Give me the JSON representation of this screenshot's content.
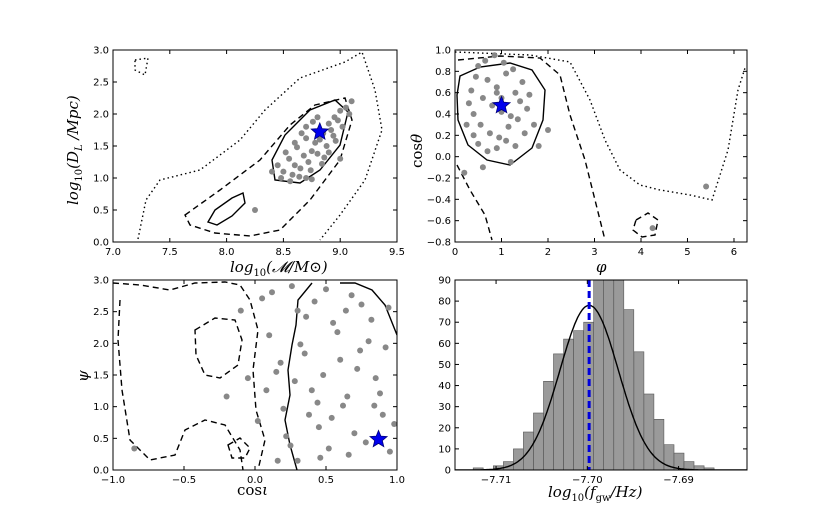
{
  "chart_data": [
    {
      "type": "scatter",
      "panel": "top-left",
      "xlabel": "log10(𝓜/M⊙)",
      "ylabel": "log10(DL /Mpc)",
      "xlim": [
        7.0,
        9.5
      ],
      "ylim": [
        0.0,
        3.0
      ],
      "xticks": [
        "7.0",
        "7.5",
        "8.0",
        "8.5",
        "9.0",
        "9.5"
      ],
      "yticks": [
        "0.0",
        "0.5",
        "1.0",
        "1.5",
        "2.0",
        "2.5",
        "3.0"
      ],
      "points": [
        [
          8.62,
          1.48
        ],
        [
          8.7,
          1.62
        ],
        [
          8.78,
          1.55
        ],
        [
          8.85,
          1.7
        ],
        [
          8.9,
          1.85
        ],
        [
          8.95,
          1.95
        ],
        [
          9.0,
          2.05
        ],
        [
          8.55,
          1.3
        ],
        [
          8.6,
          1.2
        ],
        [
          8.68,
          1.35
        ],
        [
          8.75,
          1.42
        ],
        [
          8.82,
          1.6
        ],
        [
          8.88,
          1.5
        ],
        [
          8.92,
          1.75
        ],
        [
          8.98,
          1.9
        ],
        [
          9.05,
          2.1
        ],
        [
          8.5,
          1.1
        ],
        [
          8.58,
          1.05
        ],
        [
          8.65,
          1.15
        ],
        [
          8.72,
          1.25
        ],
        [
          8.8,
          1.38
        ],
        [
          8.86,
          1.32
        ],
        [
          8.94,
          1.66
        ],
        [
          9.02,
          1.8
        ],
        [
          8.48,
          1.0
        ],
        [
          8.56,
          0.95
        ],
        [
          8.64,
          1.02
        ],
        [
          8.74,
          1.12
        ],
        [
          8.84,
          1.22
        ],
        [
          8.9,
          1.4
        ],
        [
          8.96,
          1.58
        ],
        [
          9.08,
          2.0
        ],
        [
          8.7,
          1.8
        ],
        [
          8.76,
          1.88
        ],
        [
          8.66,
          1.7
        ],
        [
          8.52,
          1.4
        ],
        [
          8.45,
          1.2
        ],
        [
          8.6,
          1.55
        ],
        [
          8.8,
          1.95
        ],
        [
          9.1,
          2.2
        ],
        [
          8.25,
          0.5
        ],
        [
          8.7,
          1.0
        ],
        [
          8.75,
          0.98
        ],
        [
          9.0,
          1.3
        ],
        [
          8.4,
          1.1
        ]
      ],
      "star": [
        8.82,
        1.72
      ],
      "contours": [
        "solid",
        "dashed",
        "dotted"
      ]
    },
    {
      "type": "scatter",
      "panel": "top-right",
      "xlabel": "φ",
      "ylabel": "cosθ",
      "xlim": [
        0,
        6.28
      ],
      "ylim": [
        -0.8,
        1.0
      ],
      "xticks": [
        "0",
        "1",
        "2",
        "3",
        "4",
        "5",
        "6"
      ],
      "yticks": [
        "−0.8",
        "−0.6",
        "−0.4",
        "−0.2",
        "0.0",
        "0.2",
        "0.4",
        "0.6",
        "0.8",
        "1.0"
      ],
      "points": [
        [
          0.5,
          0.85
        ],
        [
          0.7,
          0.72
        ],
        [
          0.9,
          0.65
        ],
        [
          1.1,
          0.78
        ],
        [
          1.3,
          0.6
        ],
        [
          0.6,
          0.55
        ],
        [
          0.8,
          0.48
        ],
        [
          1.0,
          0.42
        ],
        [
          1.2,
          0.38
        ],
        [
          1.4,
          0.52
        ],
        [
          0.4,
          0.4
        ],
        [
          0.55,
          0.3
        ],
        [
          0.75,
          0.22
        ],
        [
          0.95,
          0.18
        ],
        [
          1.15,
          0.28
        ],
        [
          1.35,
          0.35
        ],
        [
          1.55,
          0.45
        ],
        [
          0.35,
          0.62
        ],
        [
          0.45,
          0.75
        ],
        [
          0.65,
          0.9
        ],
        [
          0.85,
          0.95
        ],
        [
          1.05,
          0.88
        ],
        [
          1.25,
          0.82
        ],
        [
          1.45,
          0.7
        ],
        [
          1.6,
          0.58
        ],
        [
          0.3,
          0.5
        ],
        [
          0.5,
          0.12
        ],
        [
          0.7,
          0.05
        ],
        [
          0.9,
          0.08
        ],
        [
          1.1,
          0.15
        ],
        [
          1.3,
          0.1
        ],
        [
          1.5,
          0.22
        ],
        [
          1.7,
          0.3
        ],
        [
          0.25,
          0.3
        ],
        [
          0.6,
          -0.1
        ],
        [
          0.2,
          -0.15
        ],
        [
          1.8,
          0.1
        ],
        [
          2.0,
          0.25
        ],
        [
          1.2,
          -0.05
        ],
        [
          0.4,
          0.2
        ],
        [
          4.25,
          -0.67
        ],
        [
          5.4,
          -0.28
        ],
        [
          0.9,
          0.6
        ],
        [
          1.0,
          0.55
        ]
      ],
      "star": [
        1.0,
        0.48
      ],
      "contours": [
        "solid",
        "dashed",
        "dotted"
      ]
    },
    {
      "type": "scatter",
      "panel": "bottom-left",
      "xlabel": "cosι",
      "ylabel": "ψ",
      "xlim": [
        -1.0,
        1.0
      ],
      "ylim": [
        0.0,
        3.1
      ],
      "xticks": [
        "−1.0",
        "−0.5",
        "0.0",
        "0.5",
        "1.0"
      ],
      "yticks": [
        "0.0",
        "0.5",
        "1.0",
        "1.5",
        "2.0",
        "2.5",
        "3.0"
      ],
      "points": [
        [
          0.05,
          2.8
        ],
        [
          0.1,
          2.2
        ],
        [
          0.15,
          1.6
        ],
        [
          0.2,
          1.0
        ],
        [
          0.25,
          0.4
        ],
        [
          0.3,
          2.6
        ],
        [
          0.35,
          1.9
        ],
        [
          0.4,
          1.3
        ],
        [
          0.45,
          0.7
        ],
        [
          0.5,
          2.95
        ],
        [
          0.55,
          2.4
        ],
        [
          0.6,
          1.8
        ],
        [
          0.65,
          1.2
        ],
        [
          0.7,
          0.6
        ],
        [
          0.75,
          2.7
        ],
        [
          0.8,
          2.1
        ],
        [
          0.85,
          1.5
        ],
        [
          0.9,
          0.9
        ],
        [
          0.95,
          0.3
        ],
        [
          0.12,
          2.9
        ],
        [
          0.18,
          1.75
        ],
        [
          0.22,
          0.55
        ],
        [
          0.32,
          2.05
        ],
        [
          0.38,
          0.9
        ],
        [
          0.42,
          2.75
        ],
        [
          0.48,
          1.55
        ],
        [
          0.52,
          0.35
        ],
        [
          0.58,
          2.25
        ],
        [
          0.62,
          1.05
        ],
        [
          0.68,
          2.85
        ],
        [
          0.72,
          1.65
        ],
        [
          0.78,
          0.45
        ],
        [
          0.82,
          2.45
        ],
        [
          0.88,
          1.25
        ],
        [
          0.92,
          2.0
        ],
        [
          0.98,
          0.75
        ],
        [
          0.08,
          1.3
        ],
        [
          0.02,
          0.8
        ],
        [
          -0.05,
          1.5
        ],
        [
          -0.1,
          2.6
        ],
        [
          -0.2,
          1.2
        ],
        [
          -0.85,
          0.35
        ],
        [
          0.28,
          1.45
        ],
        [
          0.36,
          2.5
        ],
        [
          0.44,
          1.1
        ],
        [
          0.54,
          0.85
        ],
        [
          0.64,
          2.6
        ],
        [
          0.74,
          1.95
        ],
        [
          0.84,
          1.05
        ],
        [
          0.94,
          2.65
        ],
        [
          0.26,
          3.0
        ],
        [
          0.16,
          0.15
        ],
        [
          0.46,
          0.2
        ],
        [
          0.66,
          0.25
        ],
        [
          0.3,
          0.15
        ]
      ],
      "star": [
        0.87,
        0.5
      ],
      "contours": [
        "solid",
        "dashed"
      ]
    },
    {
      "type": "bar",
      "panel": "bottom-right",
      "xlabel": "log10(fgw/Hz)",
      "ylabel": "",
      "xlim": [
        -7.7145,
        -7.6825
      ],
      "ylim": [
        0,
        90
      ],
      "xticks": [
        "−7.71",
        "−7.70",
        "−7.69"
      ],
      "yticks": [
        "0",
        "10",
        "20",
        "30",
        "40",
        "50",
        "60",
        "70",
        "80",
        "90"
      ],
      "bin_edges": [
        -7.7125,
        -7.7114,
        -7.7103,
        -7.7092,
        -7.7081,
        -7.707,
        -7.7059,
        -7.7048,
        -7.7037,
        -7.7026,
        -7.7015,
        -7.7004,
        -7.6993,
        -7.6982,
        -7.6971,
        -7.696,
        -7.6949,
        -7.6938,
        -7.6927,
        -7.6916,
        -7.6905,
        -7.6894,
        -7.6883,
        -7.6872,
        -7.6861,
        -7.685
      ],
      "counts": [
        1,
        0,
        2,
        4,
        10,
        18,
        27,
        42,
        55,
        62,
        66,
        70,
        92,
        91,
        92,
        76,
        56,
        36,
        24,
        12,
        8,
        4,
        2,
        1,
        0
      ],
      "true_value": -7.6998,
      "curve_peak": 78
    }
  ]
}
